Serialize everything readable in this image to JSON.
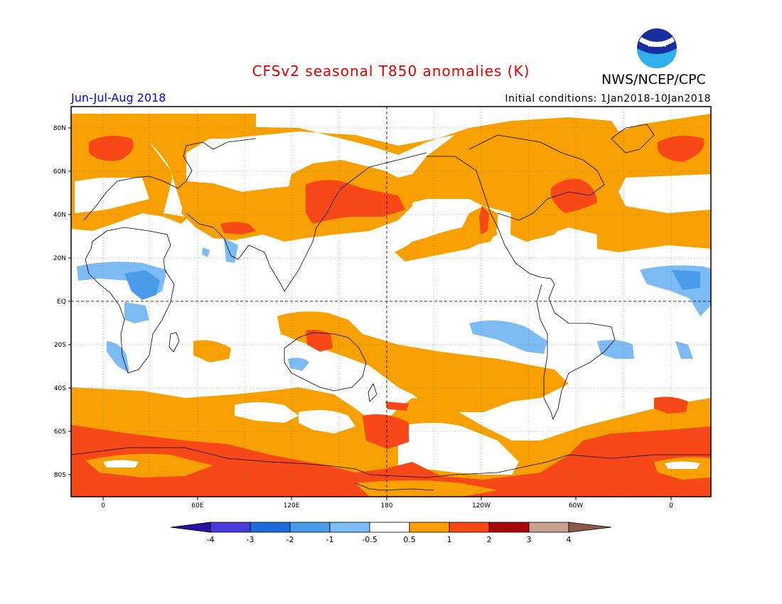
{
  "header": {
    "title": "CFSv2 seasonal T850 anomalies (K)",
    "agency": "NWS/NCEP/CPC",
    "logo_text": "NOAA",
    "period": "Jun-Jul-Aug 2018",
    "initial_conditions": "Initial conditions: 1Jan2018-10Jan2018"
  },
  "colors": {
    "title": "#e00000",
    "period": "#0000ee",
    "below_4": "#2a0fa0",
    "m4_m3": "#4a3ad8",
    "m3_m2": "#1e6bdc",
    "m2_m1": "#4a9be8",
    "m1_m05": "#7dbbf5",
    "neutral": "#ffffff",
    "p05_1": "#f8a000",
    "p1_2": "#f84818",
    "p2_3": "#a80808",
    "p3_4": "#c8a090",
    "above_4": "#8a5a48"
  },
  "map": {
    "lat_labels": [
      "80N",
      "60N",
      "40N",
      "20N",
      "EQ",
      "20S",
      "40S",
      "60S",
      "80S"
    ],
    "lon_labels": [
      "0",
      "60E",
      "120E",
      "180",
      "120W",
      "60W",
      "0"
    ]
  },
  "colorbar": {
    "labels": [
      "-4",
      "-3",
      "-2",
      "-1",
      "-0.5",
      "0.5",
      "1",
      "2",
      "3",
      "4"
    ]
  }
}
